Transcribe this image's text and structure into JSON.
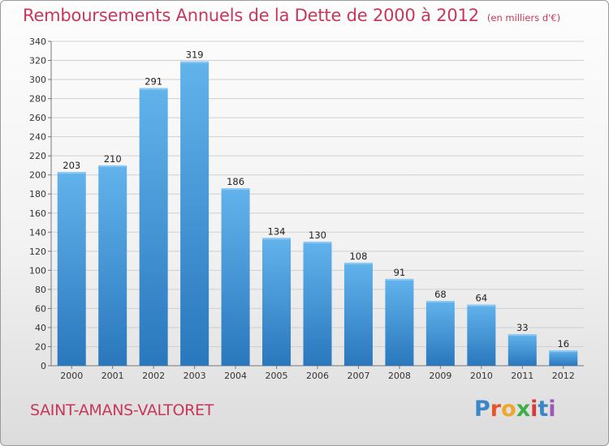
{
  "header": {
    "title": "Remboursements Annuels de la Dette de 2000 à 2012",
    "unit": "(en milliers d'€)"
  },
  "footer": {
    "commune": "SAINT-AMANS-VALTORET",
    "logo_letters": [
      "P",
      "r",
      "o",
      "x",
      "i",
      "t",
      "i"
    ]
  },
  "colors": {
    "title": "#c8375a",
    "bar_top": "#62b3ec",
    "bar_bottom": "#2a77bd",
    "grid": "#d0d0d0"
  },
  "chart_data": {
    "type": "bar",
    "categories": [
      "2000",
      "2001",
      "2002",
      "2003",
      "2004",
      "2005",
      "2006",
      "2007",
      "2008",
      "2009",
      "2010",
      "2011",
      "2012"
    ],
    "values": [
      203,
      210,
      291,
      319,
      186,
      134,
      130,
      108,
      91,
      68,
      64,
      33,
      16
    ],
    "data_labels": [
      "203",
      "210",
      "291",
      "319",
      "186",
      "134",
      "130",
      "108",
      "91",
      "68",
      "64",
      "33",
      "16"
    ],
    "yticks": [
      "0",
      "20",
      "40",
      "60",
      "80",
      "100",
      "120",
      "140",
      "160",
      "180",
      "200",
      "220",
      "240",
      "260",
      "280",
      "300",
      "320",
      "340"
    ],
    "ylim": [
      0,
      340
    ],
    "grid": true,
    "legend": "none"
  }
}
